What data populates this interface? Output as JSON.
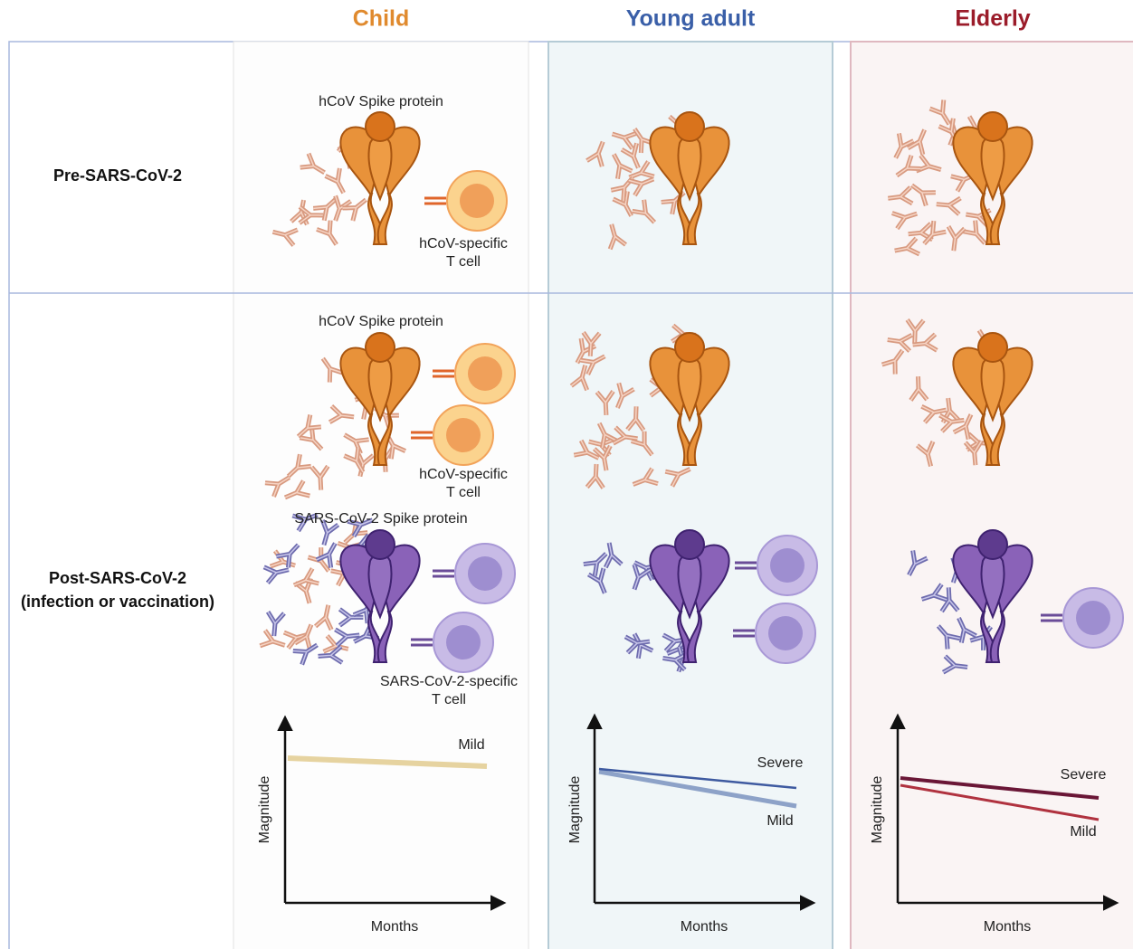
{
  "columns": [
    "Child",
    "Young adult",
    "Elderly"
  ],
  "rows": [
    {
      "lines": [
        "Pre-SARS-CoV-2"
      ]
    },
    {
      "lines": [
        "Post-SARS-CoV-2",
        "(infection or vaccination)"
      ]
    }
  ],
  "child_pre": {
    "spike": "hCoV Spike protein",
    "t_cell": [
      "hCoV-specific",
      "T cell"
    ]
  },
  "child_post": {
    "hcov_spike": "hCoV Spike protein",
    "hcov_t_cell": [
      "hCoV-specific",
      "T cell"
    ],
    "sars_spike": "SARS-CoV-2 Spike protein",
    "sars_t_cell": [
      "SARS-CoV-2-specific",
      "T cell"
    ]
  },
  "graphs": [
    {
      "y_label": "Magnitude",
      "x_label": "Months",
      "lines": [
        "Mild"
      ]
    },
    {
      "y_label": "Magnitude",
      "x_label": "Months",
      "lines": [
        "Severe",
        "Mild"
      ]
    },
    {
      "y_label": "Magnitude",
      "x_label": "Months",
      "lines": [
        "Severe",
        "Mild"
      ]
    }
  ]
}
